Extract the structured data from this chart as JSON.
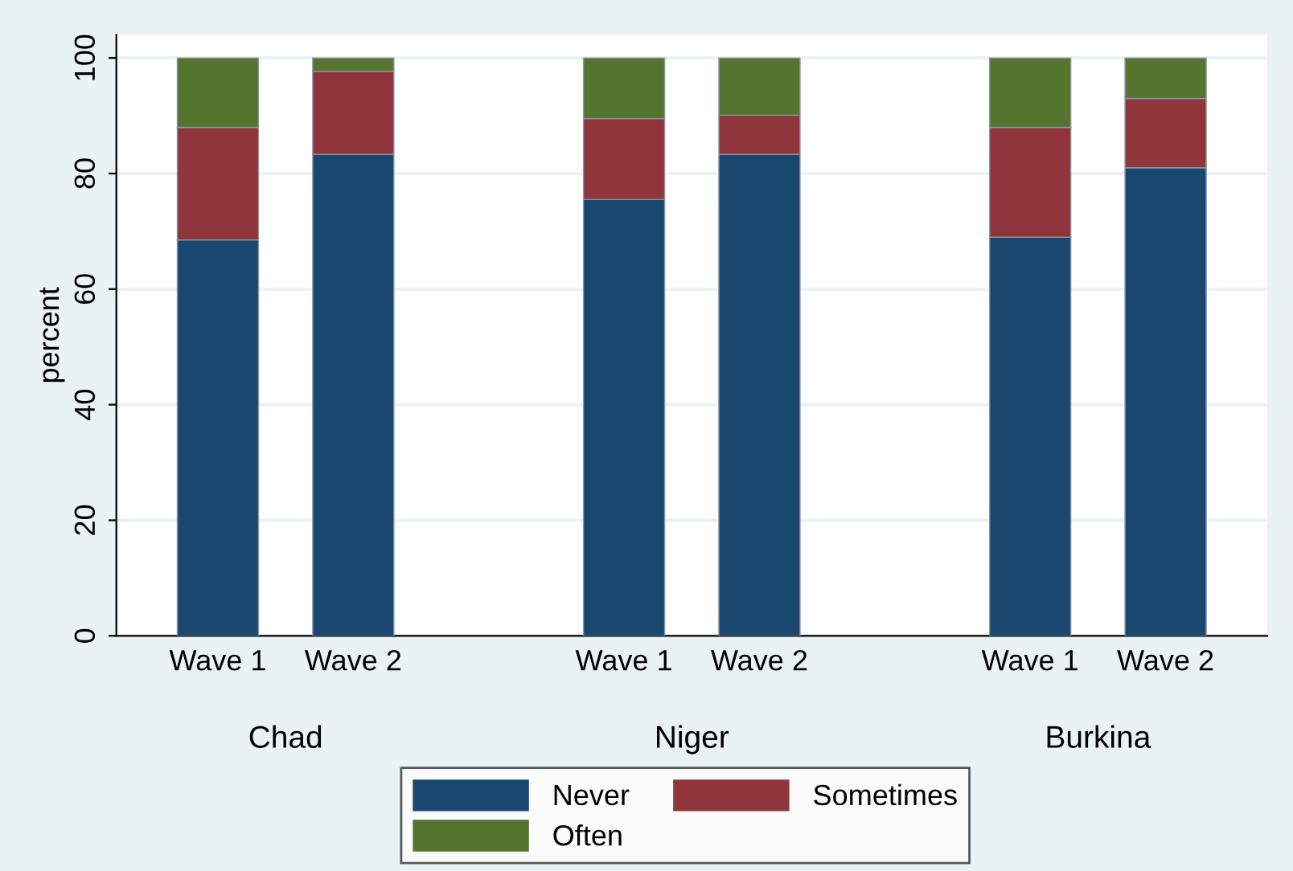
{
  "chart_data": {
    "type": "bar",
    "stacked": true,
    "ylabel": "percent",
    "categories": [
      "Wave 1",
      "Wave 2",
      null,
      "Wave 1",
      "Wave 2",
      null,
      "Wave 1",
      "Wave 2"
    ],
    "annotations": [
      "Chad",
      "Niger",
      "Burkina"
    ],
    "series": [
      {
        "name": "Never",
        "color": "#1a476f",
        "values": [
          68.5,
          83.3,
          null,
          75.5,
          83.3,
          null,
          69,
          81
        ]
      },
      {
        "name": "Sometimes",
        "color": "#90353b",
        "values": [
          19.5,
          14.4,
          null,
          14,
          6.8,
          null,
          19,
          12
        ]
      },
      {
        "name": "Often",
        "color": "#55752f",
        "values": [
          12,
          2.3,
          null,
          10.5,
          9.9,
          null,
          12,
          7
        ]
      }
    ],
    "ylim": [
      0,
      104
    ],
    "yticks": [
      0,
      20,
      40,
      60,
      80,
      100
    ],
    "grid": "y",
    "legend": "bottom"
  }
}
